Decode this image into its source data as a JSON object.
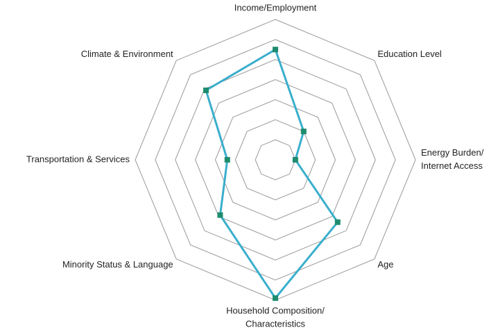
{
  "chart_data": {
    "type": "radar",
    "categories": [
      [
        "Income/Employment"
      ],
      [
        "Education Level"
      ],
      [
        "Energy Burden/",
        "Internet Access"
      ],
      [
        "Age"
      ],
      [
        "Household Composition/",
        "Characteristics"
      ],
      [
        "Minority Status & Language"
      ],
      [
        "Transportation & Services"
      ],
      [
        "Climate & Environment"
      ]
    ],
    "series": [
      {
        "color": "#3aaecc",
        "marker_color": "#1e8c6e",
        "values": [
          5.5,
          2,
          1,
          4.4,
          6.9,
          3.9,
          2.4,
          4.9
        ]
      }
    ],
    "rlim": [
      0,
      7
    ],
    "rticks": [
      1,
      2,
      3,
      4,
      5,
      6,
      7
    ],
    "grid": true
  }
}
